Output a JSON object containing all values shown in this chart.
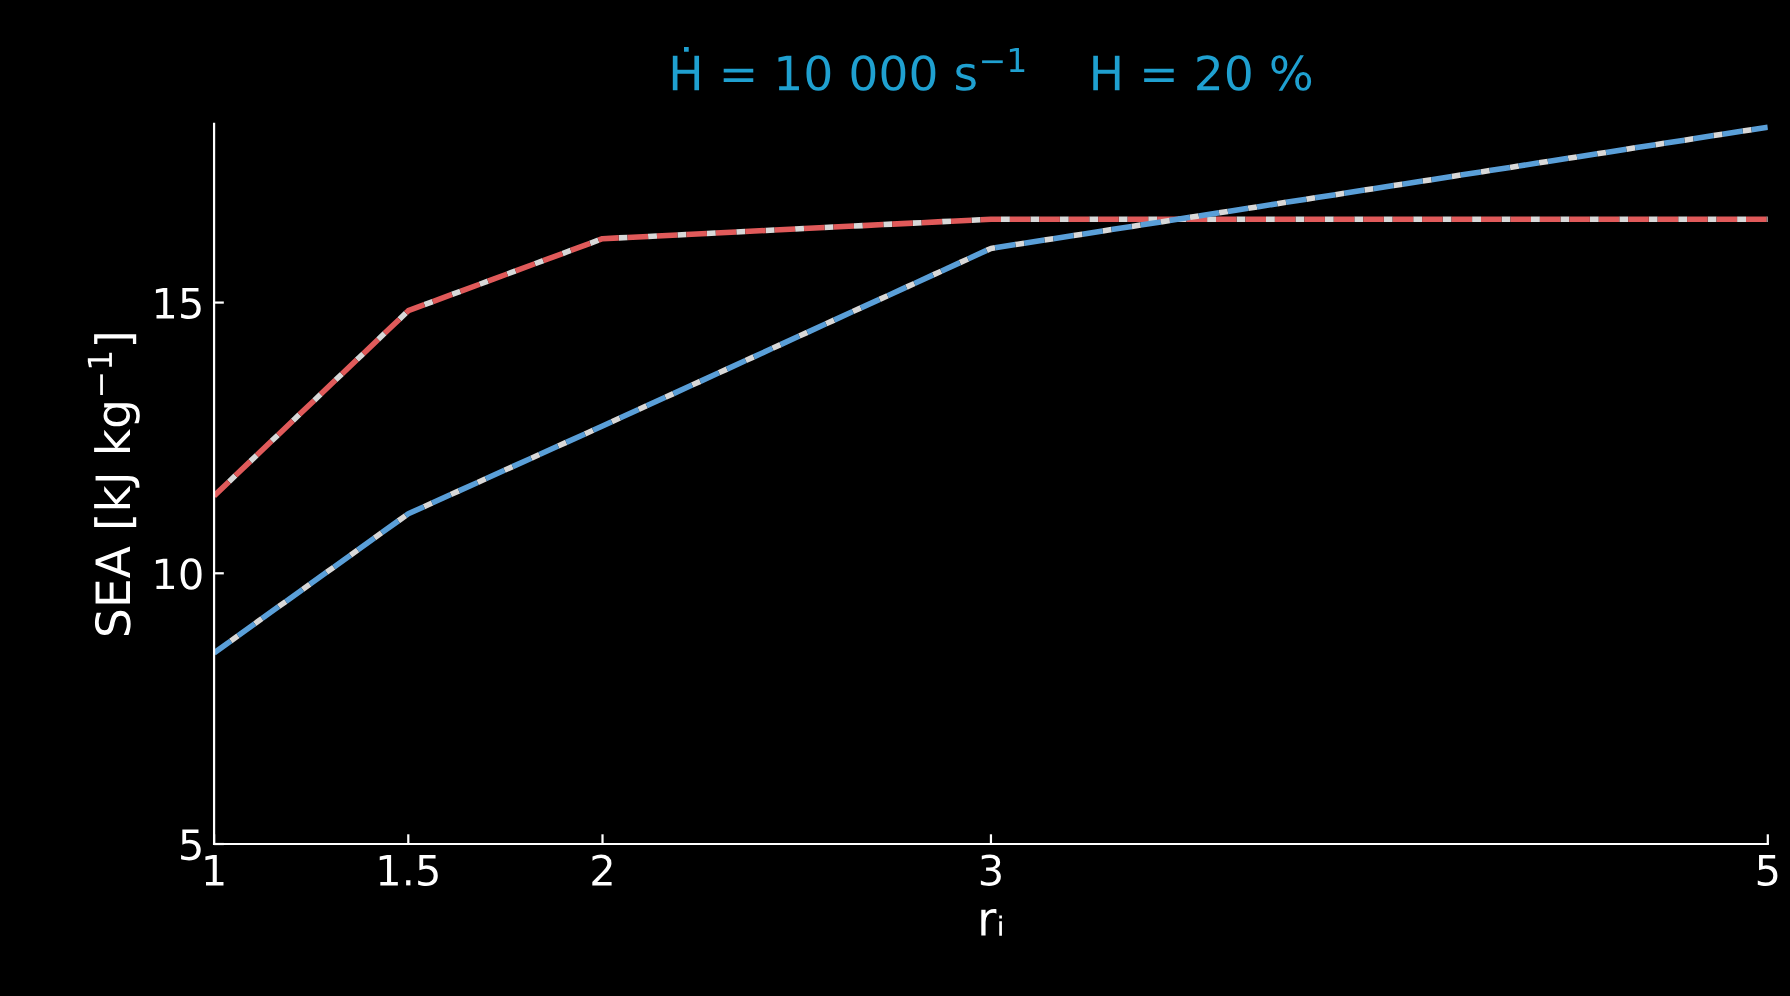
{
  "chart_data": {
    "type": "line",
    "title": "Ḣ = 10 000 s$^{−1}$    H = 20 %",
    "xlabel": "rᵢ",
    "ylabel": "SEA [kJ kg$^{−1}$]",
    "x": [
      1,
      1.5,
      2,
      3,
      5
    ],
    "series": [
      {
        "color": "#e05a5a",
        "values": [
          11.43,
          14.85,
          16.18,
          16.54,
          16.54
        ]
      },
      {
        "color": "#5a9fd8",
        "values": [
          8.53,
          11.1,
          12.72,
          16.0,
          18.24
        ]
      }
    ],
    "xlim": [
      1,
      5
    ],
    "ylim": [
      5,
      18.3
    ],
    "xticks": [
      1,
      1.5,
      2,
      3,
      5
    ],
    "yticks": [
      5,
      10,
      15
    ],
    "grid": false,
    "legend": false,
    "marker": "none",
    "line_style": "dashed"
  }
}
